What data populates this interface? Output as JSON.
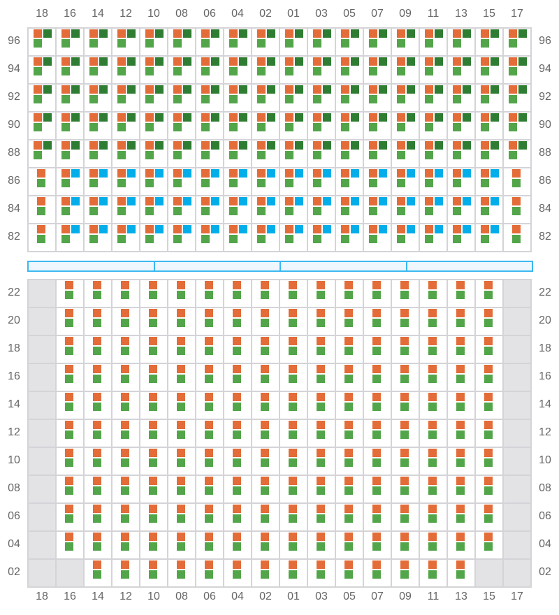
{
  "columns": [
    "18",
    "16",
    "14",
    "12",
    "10",
    "08",
    "06",
    "04",
    "02",
    "01",
    "03",
    "05",
    "07",
    "09",
    "11",
    "13",
    "15",
    "17"
  ],
  "legend_codes": {
    "A": "orange + dark green + green",
    "B": "orange + blue + green",
    "C": "orange + green",
    "X": "unavailable"
  },
  "colors": {
    "orange": "#e36c39",
    "dark_green": "#2e7d32",
    "green": "#53a54a",
    "blue": "#02aee9",
    "unavailable": "#e3e3e6",
    "divider": "#3bb8f0"
  },
  "upper_section": {
    "rows": [
      {
        "label": "96",
        "cells": "AAAAAAAAAAAAAAAAAA"
      },
      {
        "label": "94",
        "cells": "AAAAAAAAAAAAAAAAAA"
      },
      {
        "label": "92",
        "cells": "AAAAAAAAAAAAAAAAAA"
      },
      {
        "label": "90",
        "cells": "AAAAAAAAAAAAAAAAAA"
      },
      {
        "label": "88",
        "cells": "AAAAAAAAAAAAAAAAAA"
      },
      {
        "label": "86",
        "cells": "CBBBBBBBBBBBBBBBBC"
      },
      {
        "label": "84",
        "cells": "CBBBBBBBBBBBBBBBBC"
      },
      {
        "label": "82",
        "cells": "CBBBBBBBBBBBBBBBBC"
      }
    ]
  },
  "divider_segments": 4,
  "lower_section": {
    "rows": [
      {
        "label": "22",
        "cells": "XCCCCCCCCCCCCCCCCX"
      },
      {
        "label": "20",
        "cells": "XCCCCCCCCCCCCCCCCX"
      },
      {
        "label": "18",
        "cells": "XCCCCCCCCCCCCCCCCX"
      },
      {
        "label": "16",
        "cells": "XCCCCCCCCCCCCCCCCX"
      },
      {
        "label": "14",
        "cells": "XCCCCCCCCCCCCCCCCX"
      },
      {
        "label": "12",
        "cells": "XCCCCCCCCCCCCCCCCX"
      },
      {
        "label": "10",
        "cells": "XCCCCCCCCCCCCCCCCX"
      },
      {
        "label": "08",
        "cells": "XCCCCCCCCCCCCCCCCX"
      },
      {
        "label": "06",
        "cells": "XCCCCCCCCCCCCCCCCX"
      },
      {
        "label": "04",
        "cells": "XCCCCCCCCCCCCCCCCX"
      },
      {
        "label": "02",
        "cells": "XXCCCCCCCCCCCCCCXX"
      }
    ]
  }
}
